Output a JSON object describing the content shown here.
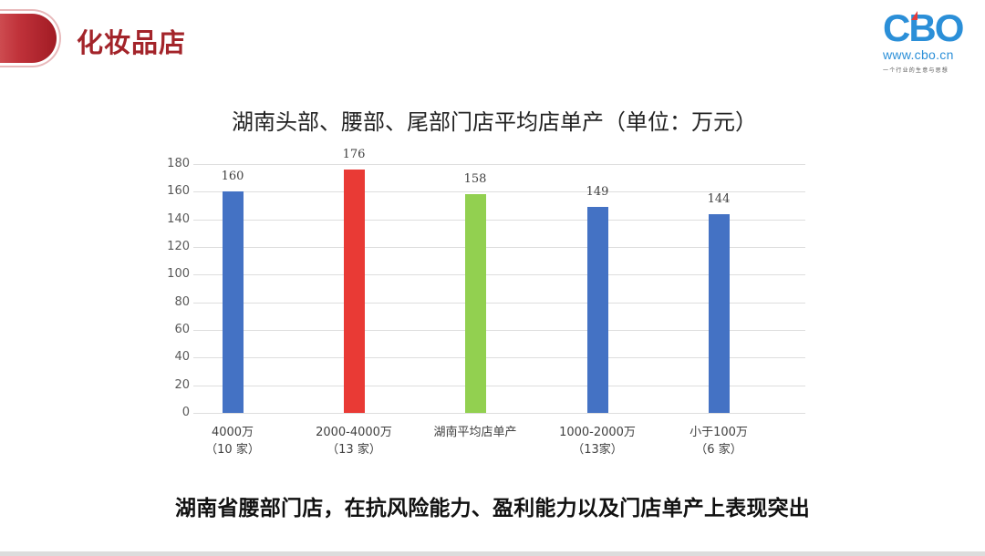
{
  "header": {
    "section_title": "化妆品店"
  },
  "logo": {
    "mark": "CBO",
    "url": "www.cbo.cn",
    "slogan": "一个行业的生意与思想"
  },
  "colors": {
    "accent_red": "#a3242a",
    "bar_blue": "#4472c4",
    "bar_red": "#e93a35",
    "bar_green": "#92d050",
    "logo_blue": "#2b8fd8"
  },
  "chart_data": {
    "type": "bar",
    "title": "湖南头部、腰部、尾部门店平均店单产（单位：万元）",
    "xlabel": "",
    "ylabel": "",
    "ylim": [
      0,
      180
    ],
    "yticks": [
      0,
      20,
      40,
      60,
      80,
      100,
      120,
      140,
      160,
      180
    ],
    "grid": true,
    "legend": "none",
    "categories": [
      "4000万（10 家）",
      "2000-4000万（13 家）",
      "湖南平均店单产",
      "1000-2000万（13家）",
      "小于100万（6 家）"
    ],
    "category_lines": [
      [
        "4000万",
        "（10 家）"
      ],
      [
        "2000-4000万",
        "（13 家）"
      ],
      [
        "湖南平均店单产",
        ""
      ],
      [
        "1000-2000万",
        "（13家）"
      ],
      [
        "小于100万",
        "（6 家）"
      ]
    ],
    "values": [
      160,
      176,
      158,
      149,
      144
    ],
    "value_labels": [
      "160",
      "176",
      "158",
      "149",
      "144"
    ],
    "bar_colors": [
      "#4472c4",
      "#e93a35",
      "#92d050",
      "#4472c4",
      "#4472c4"
    ]
  },
  "conclusion": "湖南省腰部门店，在抗风险能力、盈利能力以及门店单产上表现突出"
}
